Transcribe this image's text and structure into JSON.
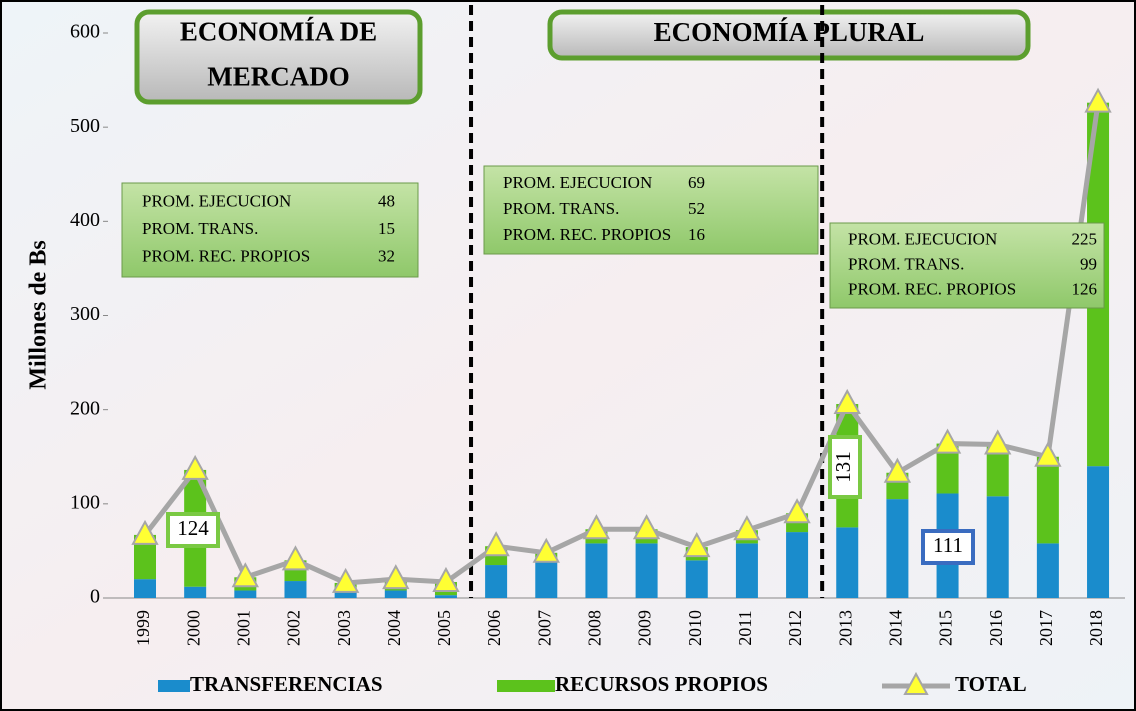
{
  "chart_data": {
    "type": "stacked-bar-line",
    "y_label": "Millones de Bs",
    "categories": [
      "1999",
      "2000",
      "2001",
      "2002",
      "2003",
      "2004",
      "2005",
      "2006",
      "2007",
      "2008",
      "2009",
      "2010",
      "2011",
      "2012",
      "2013",
      "2014",
      "2015",
      "2016",
      "2017",
      "2018"
    ],
    "series": [
      {
        "name": "TRANSFERENCIAS",
        "color": "#1a8ccc",
        "values": [
          20,
          12,
          8,
          18,
          6,
          8,
          3,
          35,
          38,
          58,
          58,
          40,
          58,
          70,
          75,
          105,
          111,
          108,
          58,
          140
        ],
        "label_indices": [
          16
        ],
        "label_color": "#3a6cc0"
      },
      {
        "name": "RECURSOS PROPIOS",
        "color": "#5cc21c",
        "values": [
          47,
          124,
          14,
          22,
          10,
          12,
          14,
          20,
          10,
          15,
          15,
          14,
          14,
          20,
          131,
          28,
          53,
          55,
          92,
          386
        ],
        "label_indices": [
          1,
          14
        ],
        "label_color": "#7ac943"
      },
      {
        "name": "TOTAL",
        "type": "line",
        "color": "#a6a6a6",
        "marker_color": "#ffff33",
        "values": [
          67,
          136,
          22,
          40,
          16,
          20,
          17,
          55,
          48,
          73,
          73,
          54,
          72,
          90,
          206,
          133,
          164,
          163,
          150,
          526
        ]
      }
    ],
    "ylim": [
      0,
      600
    ],
    "yticks": [
      0,
      100,
      200,
      300,
      400,
      500,
      600
    ],
    "eras": [
      {
        "lines": [
          "ECONOMÍA DE",
          "MERCADO"
        ]
      },
      {
        "lines": [
          "ECONOMÍA PLURAL"
        ]
      }
    ],
    "annotations": [
      [
        {
          "label": "PROM. EJECUCION",
          "value": 48
        },
        {
          "label": "PROM. TRANS.",
          "value": 15
        },
        {
          "label": "PROM. REC. PROPIOS",
          "value": 32
        }
      ],
      [
        {
          "label": "PROM. EJECUCION",
          "value": 69
        },
        {
          "label": "PROM. TRANS.",
          "value": 52
        },
        {
          "label": "PROM. REC. PROPIOS",
          "value": 16
        }
      ],
      [
        {
          "label": "PROM. EJECUCION",
          "value": 225
        },
        {
          "label": "PROM. TRANS.",
          "value": 99
        },
        {
          "label": "PROM. REC. PROPIOS",
          "value": 126
        }
      ]
    ]
  }
}
